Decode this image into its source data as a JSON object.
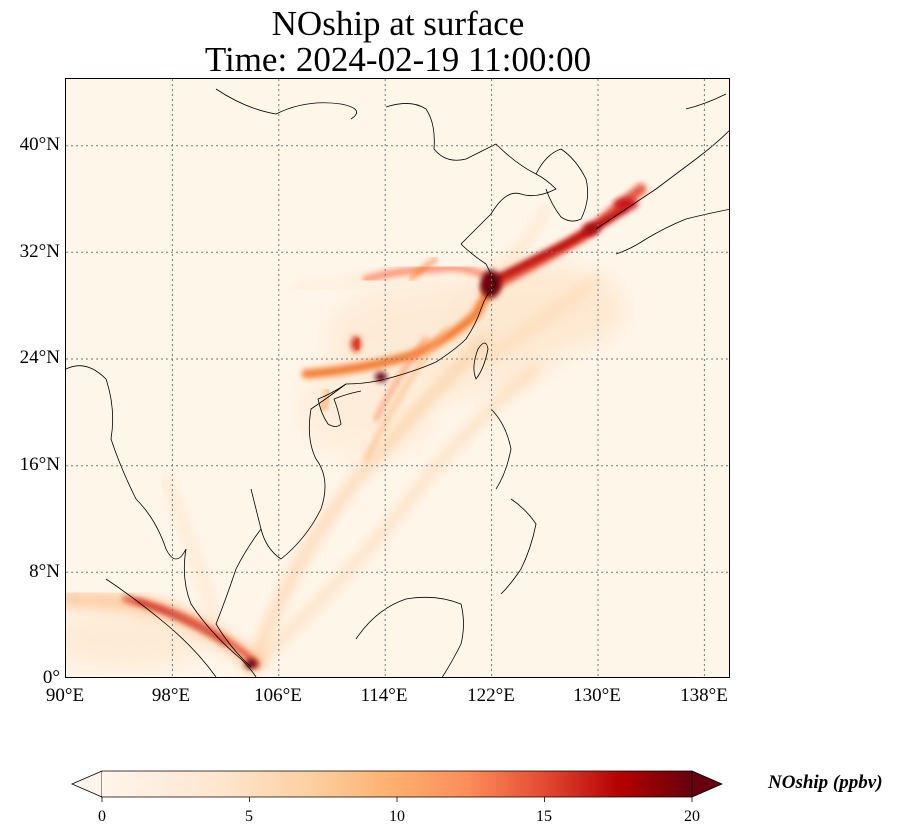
{
  "title": {
    "line1": "NOship at surface",
    "line2": "Time: 2024-02-19 11:00:00"
  },
  "map": {
    "extent": {
      "lon": [
        90,
        140
      ],
      "lat": [
        0,
        45
      ]
    },
    "lon_ticks": [
      "90°E",
      "98°E",
      "106°E",
      "114°E",
      "122°E",
      "130°E",
      "138°E"
    ],
    "lat_ticks": [
      "0°",
      "8°N",
      "16°N",
      "24°N",
      "32°N",
      "40°N"
    ],
    "gridlines": true,
    "colormap": "OrRd-like (white → orange → dark red)",
    "background_color": "#fff6ea",
    "colors": {
      "low": "#fff5eb",
      "mid": "#fdae6b",
      "high": "#d7301f",
      "max": "#67000d"
    }
  },
  "colorbar": {
    "label": "NOship (ppbv)",
    "ticks": [
      "0",
      "5",
      "10",
      "15",
      "20"
    ],
    "range": [
      0,
      20
    ],
    "extend": "both"
  }
}
